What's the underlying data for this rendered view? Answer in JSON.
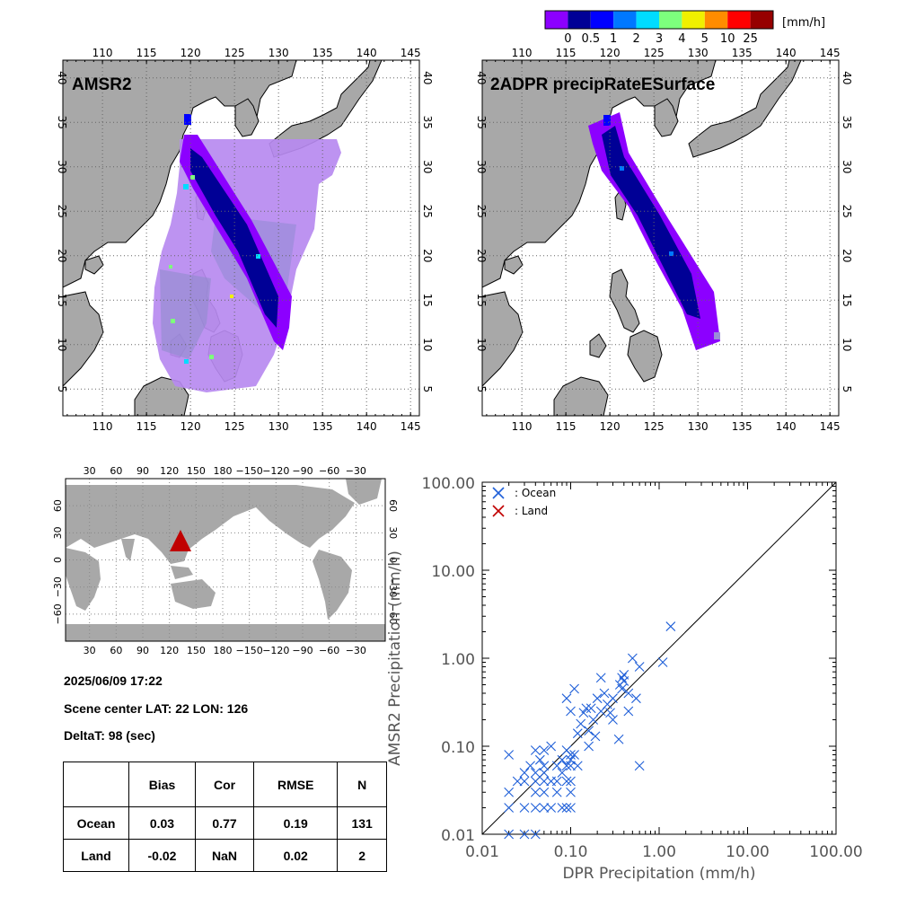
{
  "colorbar": {
    "unit": "[mm/h]",
    "ticks": [
      "0",
      "0.5",
      "1",
      "2",
      "3",
      "4",
      "5",
      "10",
      "25"
    ],
    "colors": [
      "#8c00ff",
      "#000096",
      "#0000ff",
      "#0078ff",
      "#00dcff",
      "#7dff7d",
      "#f0f000",
      "#ff8c00",
      "#ff0000",
      "#960000"
    ]
  },
  "maps": [
    {
      "title": "AMSR2",
      "lon_ticks": [
        "110",
        "115",
        "120",
        "125",
        "130",
        "135",
        "140",
        "145"
      ],
      "lat_ticks": [
        "40",
        "35",
        "30",
        "25",
        "20",
        "15",
        "10",
        "5"
      ]
    },
    {
      "title": "2ADPR precipRateESurface",
      "lon_ticks": [
        "110",
        "115",
        "120",
        "125",
        "130",
        "135",
        "140",
        "145"
      ],
      "lat_ticks": [
        "40",
        "35",
        "30",
        "25",
        "20",
        "15",
        "10",
        "5"
      ]
    }
  ],
  "world_map": {
    "lon_ticks": [
      "30",
      "60",
      "90",
      "120",
      "150",
      "180",
      "−150",
      "−120",
      "−90",
      "−60",
      "−30"
    ],
    "lat_ticks_left": [
      "60",
      "30",
      "0",
      "−30",
      "−60"
    ],
    "lat_ticks_right": [
      "60",
      "30",
      "0",
      "−30",
      "−60"
    ],
    "marker_color": "#c00000"
  },
  "info": {
    "datetime": "2025/06/09 17:22",
    "scene_center": "Scene center LAT: 22   LON: 126",
    "delta": "DeltaT:   98 (sec)"
  },
  "stats_table": {
    "headers": [
      "",
      "Bias",
      "Cor",
      "RMSE",
      "N"
    ],
    "rows": [
      [
        "Ocean",
        "0.03",
        "0.77",
        "0.19",
        "131"
      ],
      [
        "Land",
        "-0.02",
        "NaN",
        "0.02",
        "2"
      ]
    ]
  },
  "chart_data": {
    "type": "scatter",
    "xlabel": "DPR Precipitation (mm/h)",
    "ylabel": "AMSR2 Precipitation (mm/h)",
    "xscale": "log",
    "yscale": "log",
    "xlim": [
      0.01,
      100
    ],
    "ylim": [
      0.01,
      100
    ],
    "x_tick_labels": [
      "0.01",
      "0.10",
      "1.00",
      "10.00",
      "100.00"
    ],
    "y_tick_labels": [
      "0.01",
      "0.10",
      "1.00",
      "10.00",
      "100.00"
    ],
    "legend": {
      "placement": "top-left",
      "entries": [
        {
          "name": ": Ocean",
          "color": "#1f5fd8"
        },
        {
          "name": ": Land",
          "color": "#c00000"
        }
      ]
    },
    "reference_line": "1:1",
    "series": [
      {
        "name": ": Ocean",
        "color": "#1f5fd8",
        "points": [
          [
            0.02,
            0.08
          ],
          [
            0.02,
            0.03
          ],
          [
            0.02,
            0.02
          ],
          [
            0.02,
            0.01
          ],
          [
            0.025,
            0.04
          ],
          [
            0.03,
            0.05
          ],
          [
            0.03,
            0.04
          ],
          [
            0.03,
            0.02
          ],
          [
            0.03,
            0.01
          ],
          [
            0.035,
            0.06
          ],
          [
            0.04,
            0.09
          ],
          [
            0.04,
            0.05
          ],
          [
            0.04,
            0.04
          ],
          [
            0.04,
            0.03
          ],
          [
            0.04,
            0.02
          ],
          [
            0.04,
            0.01
          ],
          [
            0.045,
            0.07
          ],
          [
            0.05,
            0.09
          ],
          [
            0.05,
            0.06
          ],
          [
            0.05,
            0.05
          ],
          [
            0.05,
            0.04
          ],
          [
            0.05,
            0.03
          ],
          [
            0.05,
            0.02
          ],
          [
            0.06,
            0.1
          ],
          [
            0.06,
            0.04
          ],
          [
            0.06,
            0.02
          ],
          [
            0.07,
            0.06
          ],
          [
            0.07,
            0.04
          ],
          [
            0.07,
            0.03
          ],
          [
            0.08,
            0.07
          ],
          [
            0.08,
            0.05
          ],
          [
            0.08,
            0.02
          ],
          [
            0.09,
            0.09
          ],
          [
            0.09,
            0.06
          ],
          [
            0.09,
            0.04
          ],
          [
            0.09,
            0.02
          ],
          [
            0.1,
            0.08
          ],
          [
            0.1,
            0.07
          ],
          [
            0.1,
            0.06
          ],
          [
            0.1,
            0.04
          ],
          [
            0.1,
            0.03
          ],
          [
            0.1,
            0.02
          ],
          [
            0.11,
            0.08
          ],
          [
            0.12,
            0.06
          ],
          [
            0.09,
            0.35
          ],
          [
            0.1,
            0.25
          ],
          [
            0.11,
            0.45
          ],
          [
            0.12,
            0.14
          ],
          [
            0.13,
            0.18
          ],
          [
            0.14,
            0.24
          ],
          [
            0.15,
            0.27
          ],
          [
            0.16,
            0.15
          ],
          [
            0.16,
            0.1
          ],
          [
            0.17,
            0.27
          ],
          [
            0.18,
            0.2
          ],
          [
            0.19,
            0.13
          ],
          [
            0.2,
            0.35
          ],
          [
            0.22,
            0.6
          ],
          [
            0.22,
            0.25
          ],
          [
            0.24,
            0.4
          ],
          [
            0.26,
            0.3
          ],
          [
            0.28,
            0.24
          ],
          [
            0.3,
            0.35
          ],
          [
            0.3,
            0.2
          ],
          [
            0.35,
            0.12
          ],
          [
            0.36,
            0.5
          ],
          [
            0.38,
            0.6
          ],
          [
            0.38,
            0.45
          ],
          [
            0.4,
            0.65
          ],
          [
            0.4,
            0.55
          ],
          [
            0.45,
            0.25
          ],
          [
            0.45,
            0.4
          ],
          [
            0.5,
            1.0
          ],
          [
            0.55,
            0.35
          ],
          [
            0.6,
            0.8
          ],
          [
            0.6,
            0.06
          ],
          [
            1.1,
            0.9
          ],
          [
            1.35,
            2.3
          ]
        ]
      },
      {
        "name": ": Land",
        "color": "#c00000",
        "points": []
      }
    ]
  }
}
